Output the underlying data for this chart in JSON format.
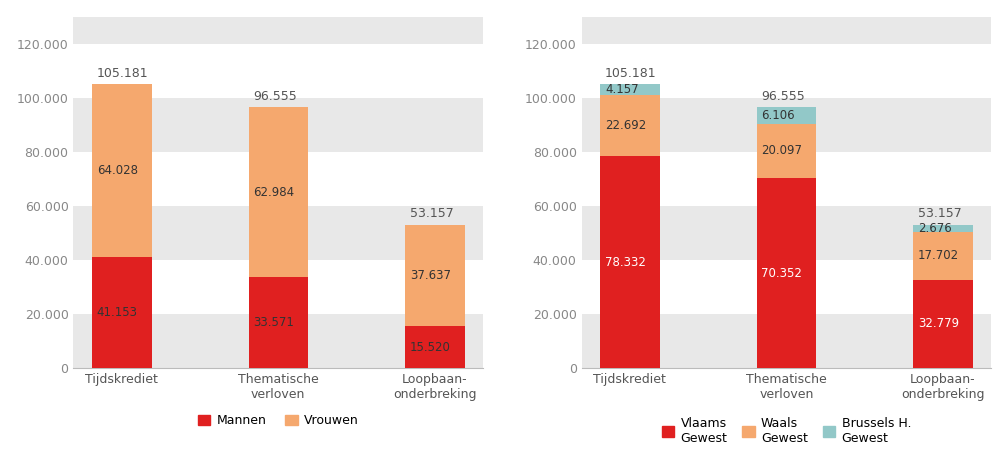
{
  "categories": [
    "Tijdskrediet",
    "Thematische\nverloven",
    "Loopbaan-\nonderbreking"
  ],
  "left_chart": {
    "mannen": [
      41153,
      33571,
      15520
    ],
    "vrouwen": [
      64028,
      62984,
      37637
    ],
    "totals": [
      105181,
      96555,
      53157
    ],
    "mannen_labels": [
      "41.153",
      "33.571",
      "15.520"
    ],
    "vrouwen_labels": [
      "64.028",
      "62.984",
      "37.637"
    ],
    "total_labels": [
      "105.181",
      "96.555",
      "53.157"
    ],
    "color_mannen": "#e02020",
    "color_vrouwen": "#f5a86e",
    "legend": [
      "Mannen",
      "Vrouwen"
    ]
  },
  "right_chart": {
    "vlaams": [
      78332,
      70352,
      32779
    ],
    "waals": [
      22692,
      20097,
      17702
    ],
    "brussels": [
      4157,
      6106,
      2676
    ],
    "totals": [
      105181,
      96555,
      53157
    ],
    "vlaams_labels": [
      "78.332",
      "70.352",
      "32.779"
    ],
    "waals_labels": [
      "22.692",
      "20.097",
      "17.702"
    ],
    "brussels_labels": [
      "4.157",
      "6.106",
      "2.676"
    ],
    "total_labels": [
      "105.181",
      "96.555",
      "53.157"
    ],
    "color_vlaams": "#e02020",
    "color_waals": "#f5a86e",
    "color_brussels": "#92c8c8",
    "legend": [
      "Vlaams\nGewest",
      "Waals\nGewest",
      "Brussels H.\nGewest"
    ]
  },
  "ylim": [
    0,
    130000
  ],
  "yticks": [
    0,
    20000,
    40000,
    60000,
    80000,
    100000,
    120000
  ],
  "band_color": "#e8e8e8",
  "background_color": "#ffffff",
  "bar_width": 0.38,
  "label_fontsize": 8.5,
  "tick_fontsize": 9,
  "total_fontsize": 9
}
